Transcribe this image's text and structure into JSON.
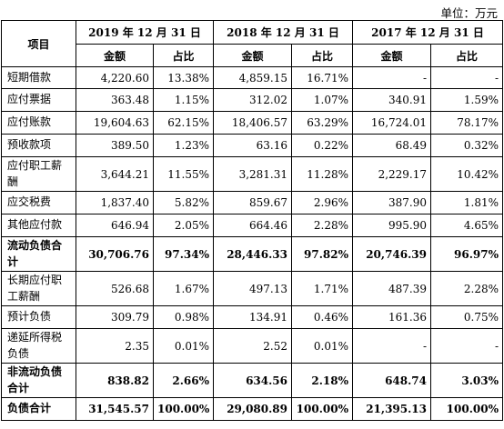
{
  "unit_note": "单位：万元",
  "header": {
    "item_label": "项目",
    "years": [
      "2019 年 12 月 31 日",
      "2018 年 12 月 31 日",
      "2017 年 12 月 31 日"
    ],
    "amount_label": "金额",
    "ratio_label": "占比"
  },
  "rows": [
    {
      "label": "短期借款",
      "v": [
        "4,220.60",
        "13.38%",
        "4,859.15",
        "16.71%",
        "-",
        "-"
      ]
    },
    {
      "label": "应付票据",
      "v": [
        "363.48",
        "1.15%",
        "312.02",
        "1.07%",
        "340.91",
        "1.59%"
      ]
    },
    {
      "label": "应付账款",
      "v": [
        "19,604.63",
        "62.15%",
        "18,406.57",
        "63.29%",
        "16,724.01",
        "78.17%"
      ]
    },
    {
      "label": "预收款项",
      "v": [
        "389.50",
        "1.23%",
        "63.16",
        "0.22%",
        "68.49",
        "0.32%"
      ]
    },
    {
      "label": "应付职工薪酬",
      "v": [
        "3,644.21",
        "11.55%",
        "3,281.31",
        "11.28%",
        "2,229.17",
        "10.42%"
      ]
    },
    {
      "label": "应交税费",
      "v": [
        "1,837.40",
        "5.82%",
        "859.67",
        "2.96%",
        "387.90",
        "1.81%"
      ]
    },
    {
      "label": "其他应付款",
      "v": [
        "646.94",
        "2.05%",
        "664.46",
        "2.28%",
        "995.90",
        "4.65%"
      ]
    },
    {
      "label": "流动负债合计",
      "v": [
        "30,706.76",
        "97.34%",
        "28,446.33",
        "97.82%",
        "20,746.39",
        "96.97%"
      ]
    },
    {
      "label": "长期应付职工薪酬",
      "v": [
        "526.68",
        "1.67%",
        "497.13",
        "1.71%",
        "487.39",
        "2.28%"
      ]
    },
    {
      "label": "预计负债",
      "v": [
        "309.79",
        "0.98%",
        "134.91",
        "0.46%",
        "161.36",
        "0.75%"
      ]
    },
    {
      "label": "递延所得税负债",
      "v": [
        "2.35",
        "0.01%",
        "2.52",
        "0.01%",
        "-",
        "-"
      ]
    },
    {
      "label": "非流动负债合计",
      "v": [
        "838.82",
        "2.66%",
        "634.56",
        "2.18%",
        "648.74",
        "3.03%"
      ]
    },
    {
      "label": "负债合计",
      "v": [
        "31,545.57",
        "100.00%",
        "29,080.89",
        "100.00%",
        "21,395.13",
        "100.00%"
      ]
    }
  ]
}
